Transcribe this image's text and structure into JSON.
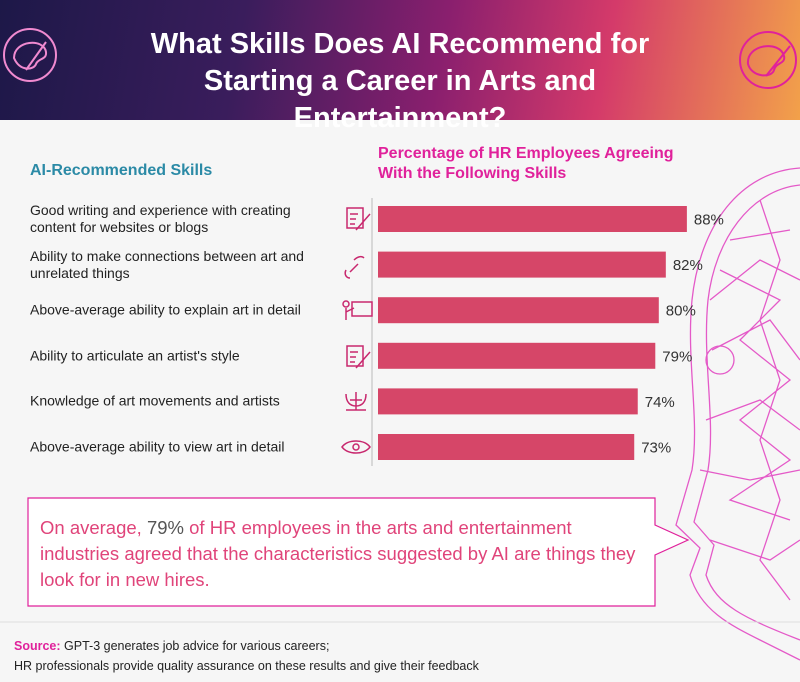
{
  "chart_data": {
    "type": "bar",
    "orientation": "horizontal",
    "title": "What Skills Does AI Recommend for Starting a Career in Arts and Entertainment?",
    "category_heading": "AI-Recommended Skills",
    "value_heading": "Percentage of HR Employees Agreeing With the Following Skills",
    "categories": [
      "Good writing and experience with creating content for websites or blogs",
      "Ability to make connections between art and unrelated things",
      "Above-average ability to explain art in detail",
      "Ability to articulate an artist's style",
      "Knowledge of art movements and artists",
      "Above-average ability to view art in detail"
    ],
    "values": [
      88,
      82,
      80,
      79,
      74,
      73
    ],
    "value_labels": [
      "88%",
      "82%",
      "80%",
      "79%",
      "74%",
      "73%"
    ],
    "color": "#d64668"
  },
  "callout": {
    "before": "On average,",
    "highlight": "79%",
    "after": "of HR employees in the arts and entertainment industries agreed that the characteristics suggested by AI are things they look for in new hires."
  },
  "source": {
    "label": "Source:",
    "lines": [
      "GPT-3 generates job advice for various careers;",
      "HR professionals provide quality assurance on these results and give their feedback"
    ]
  }
}
